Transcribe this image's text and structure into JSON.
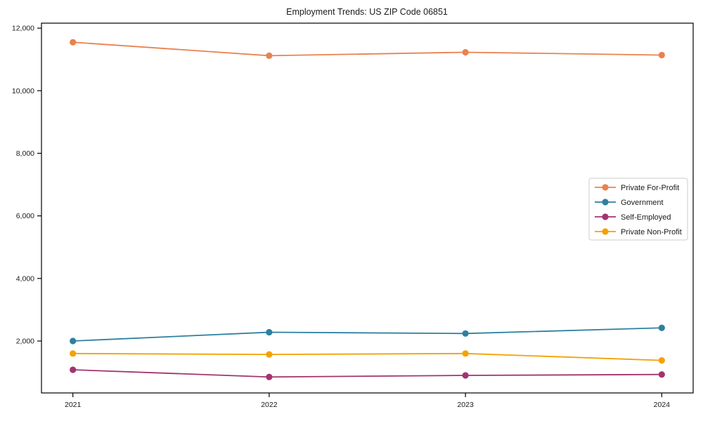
{
  "chart_data": {
    "type": "line",
    "title": "Employment Trends: US ZIP Code 06851",
    "categories": [
      "2021",
      "2022",
      "2023",
      "2024"
    ],
    "x_numeric": [
      2021,
      2022,
      2023,
      2024
    ],
    "series": [
      {
        "name": "Private For-Profit",
        "color": "#E8834E",
        "values": [
          11550,
          11120,
          11230,
          11140
        ]
      },
      {
        "name": "Government",
        "color": "#2E80A0",
        "values": [
          2000,
          2280,
          2240,
          2420
        ]
      },
      {
        "name": "Self-Employed",
        "color": "#A13470",
        "values": [
          1080,
          850,
          900,
          930
        ]
      },
      {
        "name": "Private Non-Profit",
        "color": "#F3A202",
        "values": [
          1600,
          1570,
          1600,
          1380
        ]
      }
    ],
    "xlabel": "",
    "ylabel": "",
    "xlim": [
      2020.84,
      2024.16
    ],
    "ylim": [
      340,
      12160
    ],
    "yticks": [
      2000,
      4000,
      6000,
      8000,
      10000,
      12000
    ],
    "ytick_labels": [
      "2,000",
      "4,000",
      "6,000",
      "8,000",
      "10,000",
      "12,000"
    ],
    "grid": false,
    "legend": {
      "position": "center-right",
      "entries": [
        "Private For-Profit",
        "Government",
        "Self-Employed",
        "Private Non-Profit"
      ],
      "border_color": "#cccccc",
      "background": "#ffffff"
    },
    "axis_color": "#000000",
    "marker": "circle",
    "background": "#ffffff"
  }
}
